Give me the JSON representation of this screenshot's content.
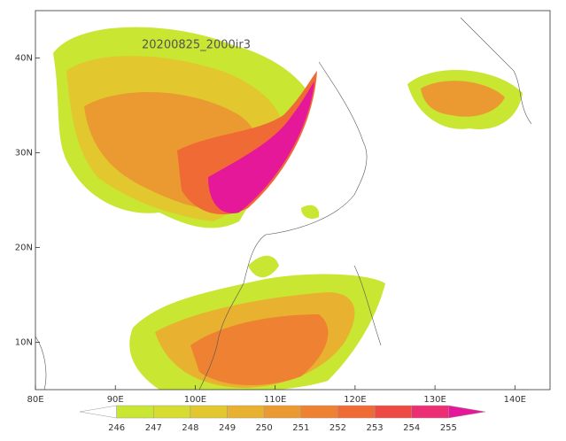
{
  "map": {
    "title": "20200825_2000ir3",
    "xlim": [
      80,
      144.4
    ],
    "ylim": [
      5,
      45
    ],
    "xticks": [
      {
        "value": 80,
        "label": "80E"
      },
      {
        "value": 90,
        "label": "90E"
      },
      {
        "value": 100,
        "label": "100E"
      },
      {
        "value": 110,
        "label": "110E"
      },
      {
        "value": 120,
        "label": "120E"
      },
      {
        "value": 130,
        "label": "130E"
      },
      {
        "value": 140,
        "label": "140E"
      }
    ],
    "yticks": [
      {
        "value": 10,
        "label": "10N"
      },
      {
        "value": 20,
        "label": "20N"
      },
      {
        "value": 30,
        "label": "30N"
      },
      {
        "value": 40,
        "label": "40N"
      }
    ],
    "colorbar": {
      "levels": [
        246,
        247,
        248,
        249,
        250,
        251,
        252,
        253,
        254,
        255
      ],
      "colors": [
        "#ffffff",
        "#c8e632",
        "#d6dc30",
        "#e2c82e",
        "#e8b230",
        "#ea9a30",
        "#ee8232",
        "#f06a36",
        "#ee4a44",
        "#ec2e74",
        "#e6189a"
      ]
    }
  }
}
